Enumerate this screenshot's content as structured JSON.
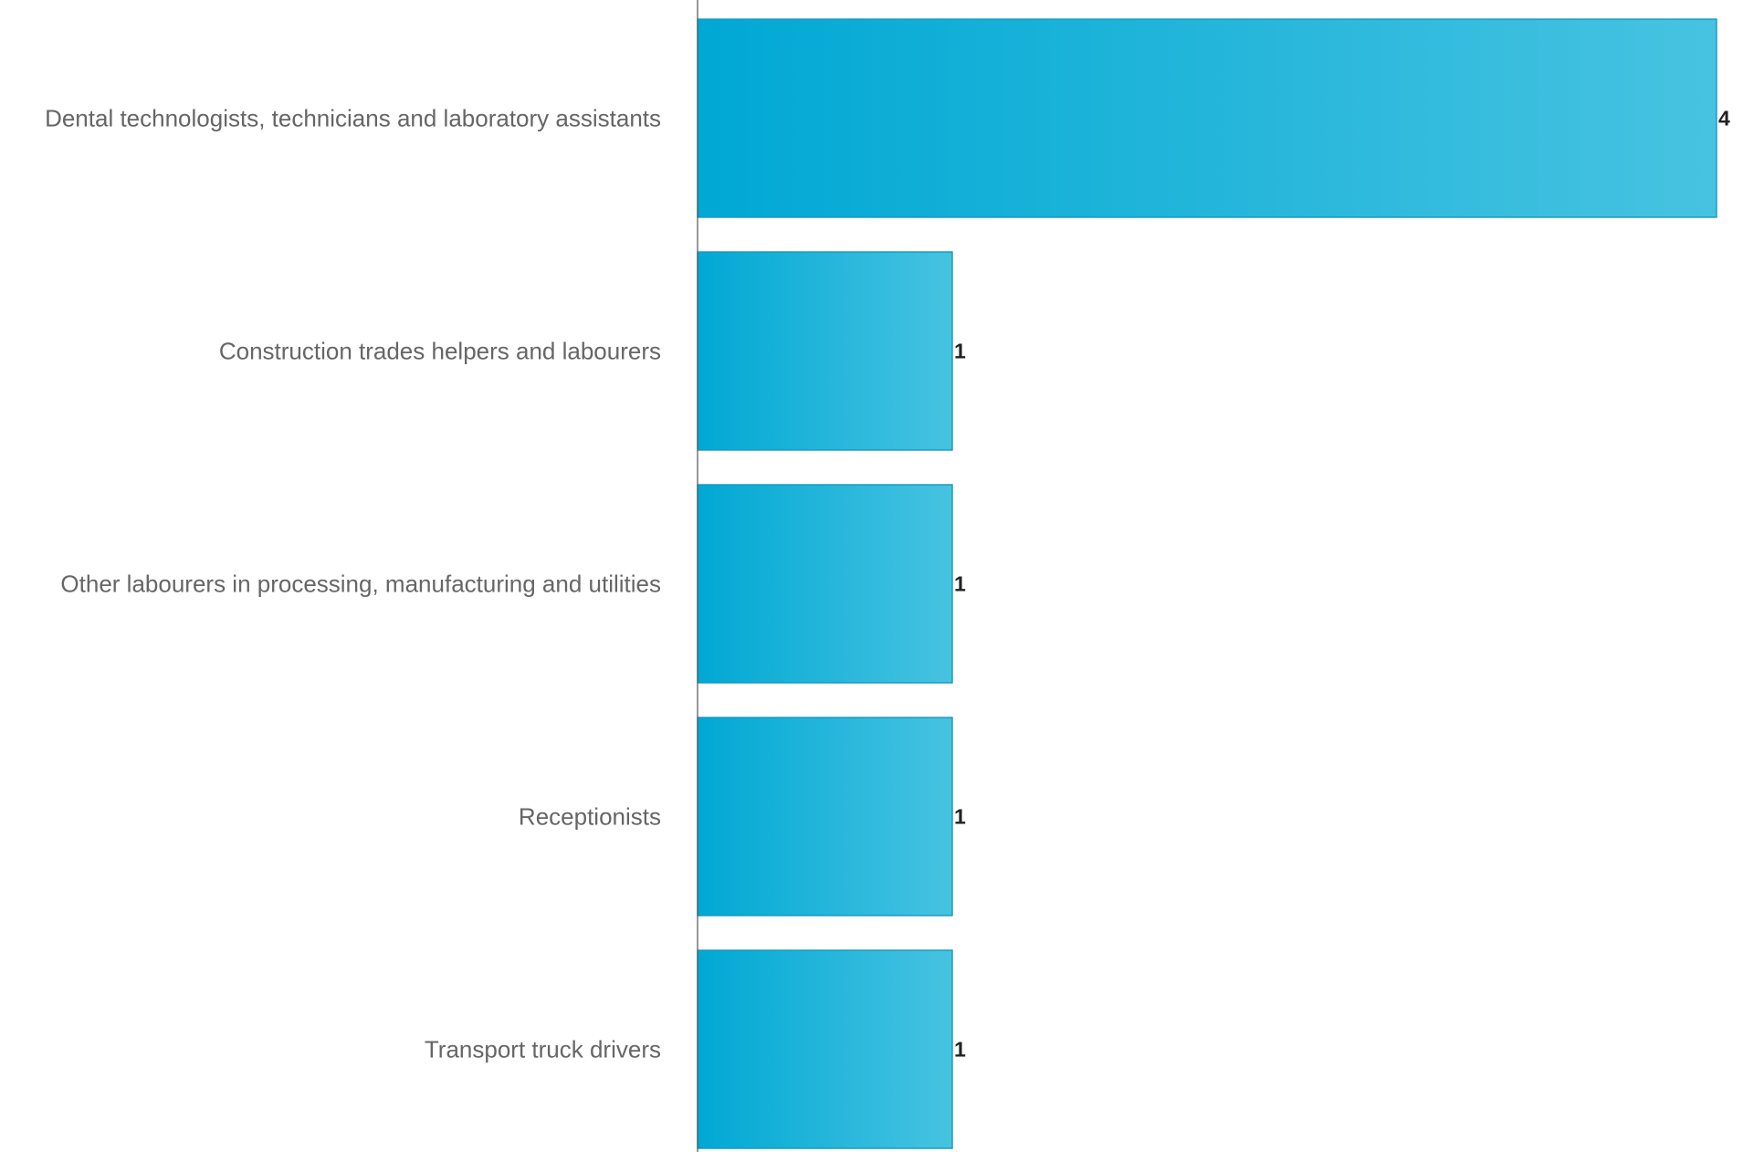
{
  "chart_data": {
    "type": "bar",
    "orientation": "horizontal",
    "categories": [
      "Dental technologists, technicians and laboratory assistants",
      "Construction trades helpers and labourers",
      "Other labourers in processing, manufacturing and utilities",
      "Receptionists",
      "Transport truck drivers"
    ],
    "values": [
      4,
      1,
      1,
      1,
      1
    ],
    "value_labels": [
      "4",
      "1",
      "1",
      "1",
      "1"
    ],
    "title": "",
    "xlabel": "",
    "ylabel": "",
    "xlim": [
      0,
      4
    ],
    "grid": false,
    "legend": "none",
    "colors": {
      "bar_start": "#00a8d4",
      "bar_end": "#47c3e1",
      "bar_border": "#1497c0",
      "axis": "#555555",
      "label": "#666666",
      "value": "#222222"
    }
  }
}
